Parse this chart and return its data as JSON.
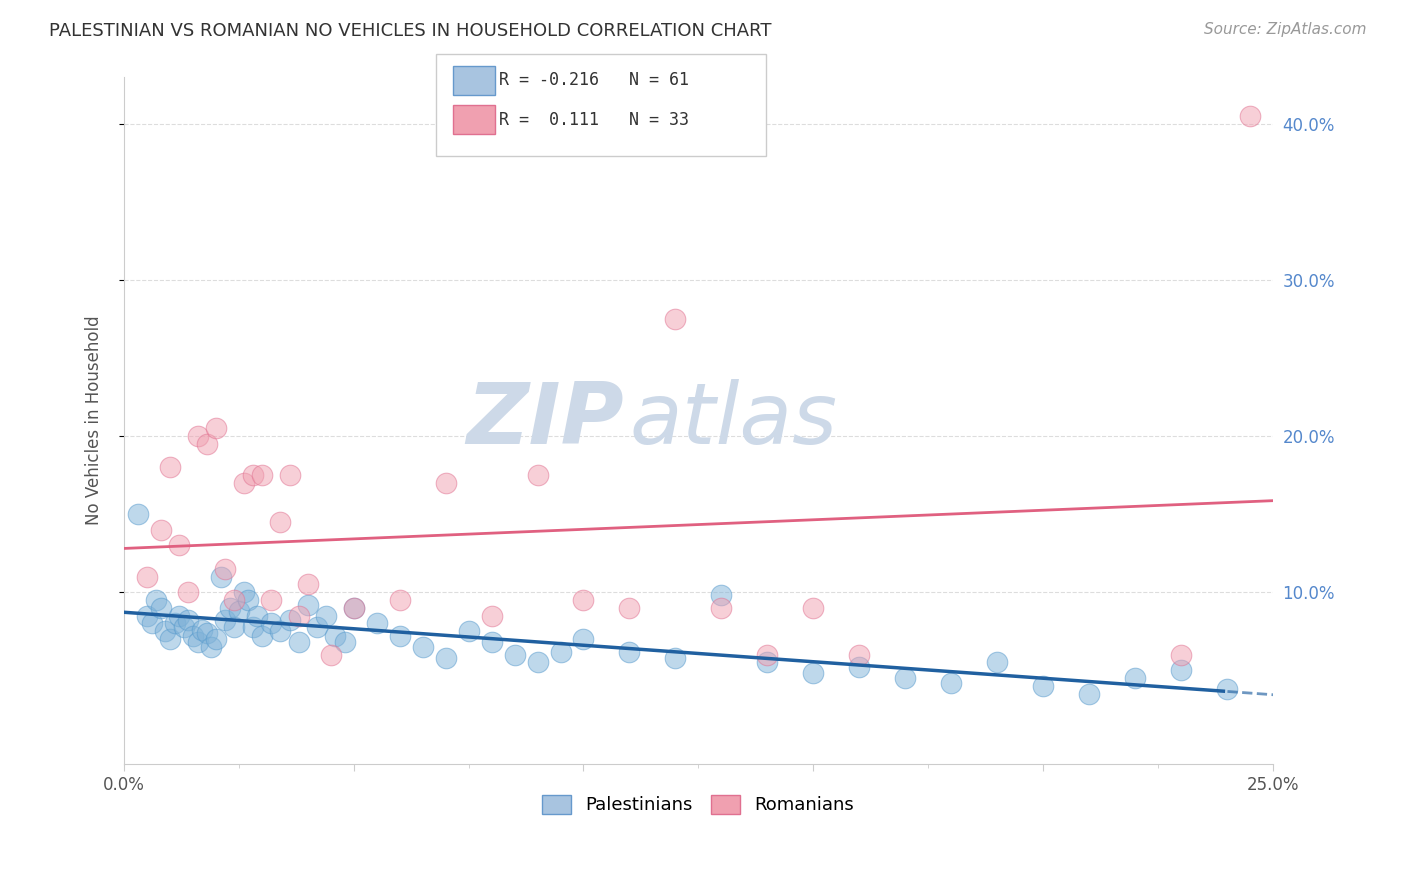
{
  "title": "PALESTINIAN VS ROMANIAN NO VEHICLES IN HOUSEHOLD CORRELATION CHART",
  "source": "Source: ZipAtlas.com",
  "ylabel_label": "No Vehicles in Household",
  "xlim": [
    0.0,
    0.25
  ],
  "ylim": [
    -0.01,
    0.43
  ],
  "background_color": "#ffffff",
  "grid_color": "#dddddd",
  "watermark_zip": "ZIP",
  "watermark_atlas": "atlas",
  "watermark_color": "#cdd9e8",
  "blue_color": "#7fb2d8",
  "pink_color": "#f0a0b0",
  "blue_edge_color": "#5599cc",
  "pink_edge_color": "#e07090",
  "blue_line_color": "#2060a0",
  "pink_line_color": "#e06080",
  "palestinians_x": [
    0.003,
    0.005,
    0.006,
    0.007,
    0.008,
    0.009,
    0.01,
    0.011,
    0.012,
    0.013,
    0.014,
    0.015,
    0.016,
    0.017,
    0.018,
    0.019,
    0.02,
    0.021,
    0.022,
    0.023,
    0.024,
    0.025,
    0.026,
    0.027,
    0.028,
    0.029,
    0.03,
    0.032,
    0.034,
    0.036,
    0.038,
    0.04,
    0.042,
    0.044,
    0.046,
    0.048,
    0.05,
    0.055,
    0.06,
    0.065,
    0.07,
    0.075,
    0.08,
    0.085,
    0.09,
    0.095,
    0.1,
    0.11,
    0.12,
    0.13,
    0.14,
    0.15,
    0.16,
    0.17,
    0.18,
    0.19,
    0.2,
    0.21,
    0.22,
    0.23,
    0.24
  ],
  "palestinians_y": [
    0.15,
    0.085,
    0.08,
    0.095,
    0.09,
    0.075,
    0.07,
    0.08,
    0.085,
    0.078,
    0.082,
    0.072,
    0.068,
    0.076,
    0.074,
    0.065,
    0.07,
    0.11,
    0.082,
    0.09,
    0.078,
    0.088,
    0.1,
    0.095,
    0.078,
    0.085,
    0.072,
    0.08,
    0.075,
    0.082,
    0.068,
    0.092,
    0.078,
    0.085,
    0.072,
    0.068,
    0.09,
    0.08,
    0.072,
    0.065,
    0.058,
    0.075,
    0.068,
    0.06,
    0.055,
    0.062,
    0.07,
    0.062,
    0.058,
    0.098,
    0.055,
    0.048,
    0.052,
    0.045,
    0.042,
    0.055,
    0.04,
    0.035,
    0.045,
    0.05,
    0.038
  ],
  "romanians_x": [
    0.005,
    0.008,
    0.01,
    0.012,
    0.014,
    0.016,
    0.018,
    0.02,
    0.022,
    0.024,
    0.026,
    0.028,
    0.03,
    0.032,
    0.034,
    0.036,
    0.038,
    0.04,
    0.045,
    0.05,
    0.06,
    0.07,
    0.08,
    0.09,
    0.1,
    0.11,
    0.12,
    0.13,
    0.14,
    0.15,
    0.16,
    0.23,
    0.245
  ],
  "romanians_y": [
    0.11,
    0.14,
    0.18,
    0.13,
    0.1,
    0.2,
    0.195,
    0.205,
    0.115,
    0.095,
    0.17,
    0.175,
    0.175,
    0.095,
    0.145,
    0.175,
    0.085,
    0.105,
    0.06,
    0.09,
    0.095,
    0.17,
    0.085,
    0.175,
    0.095,
    0.09,
    0.275,
    0.09,
    0.06,
    0.09,
    0.06,
    0.06,
    0.405
  ]
}
